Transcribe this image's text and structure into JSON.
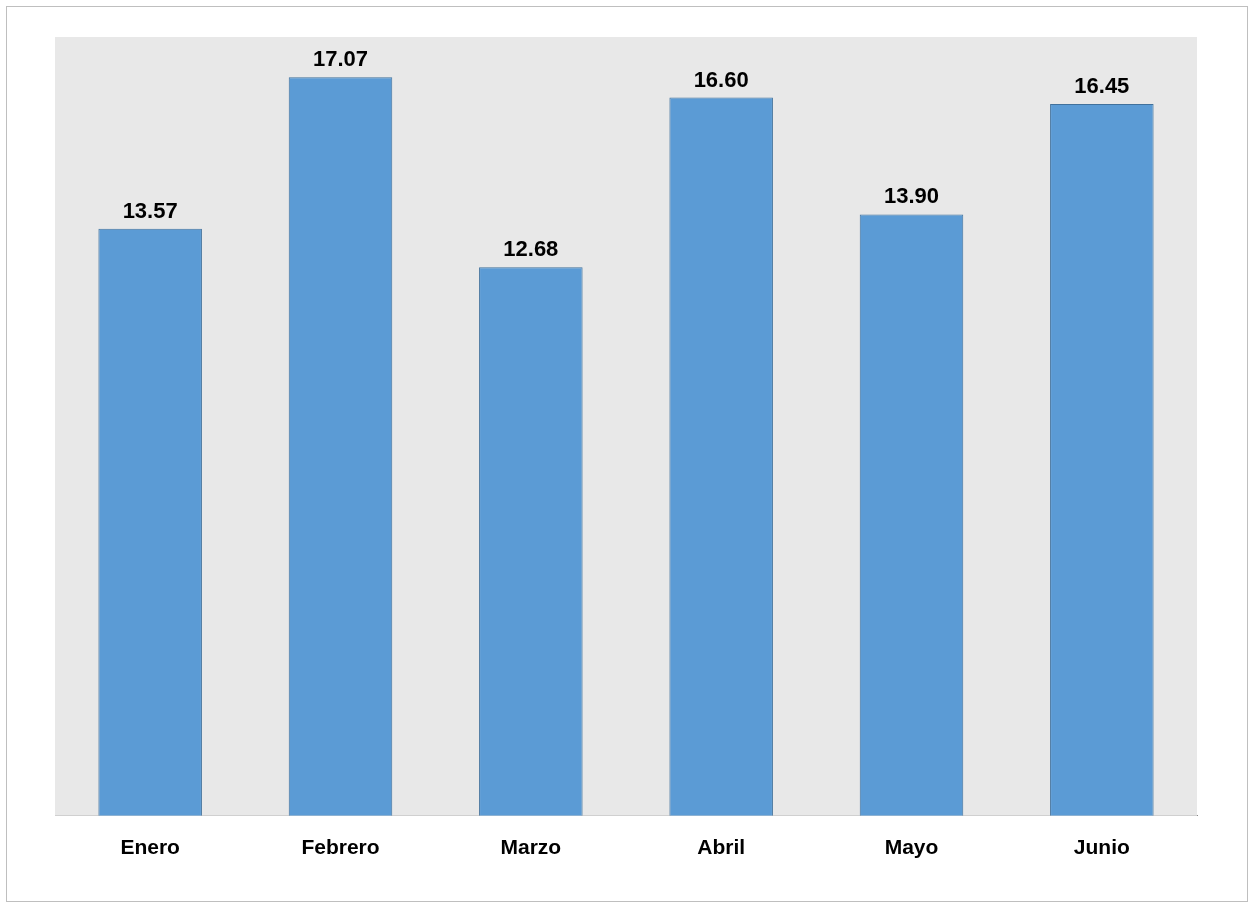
{
  "chart_data": {
    "type": "bar",
    "categories": [
      "Enero",
      "Febrero",
      "Marzo",
      "Abril",
      "Mayo",
      "Junio"
    ],
    "values": [
      13.57,
      17.07,
      12.68,
      16.6,
      13.9,
      16.45
    ],
    "value_labels": [
      "13.57",
      "17.07",
      "12.68",
      "16.60",
      "13.90",
      "16.45"
    ],
    "color": "#5b9bd5",
    "relative": false,
    "grid": false,
    "legend": false
  }
}
